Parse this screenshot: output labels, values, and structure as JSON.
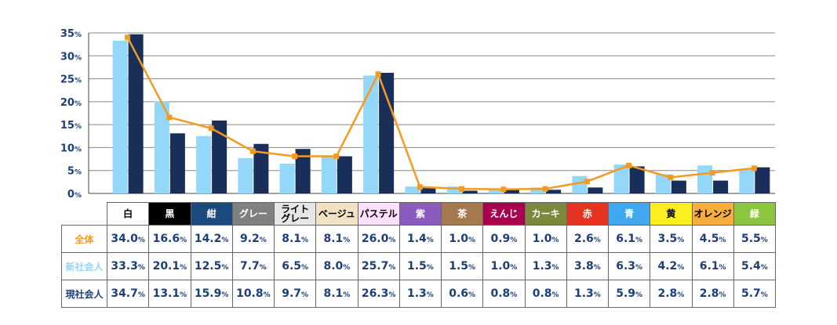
{
  "chart_data": {
    "type": "bar",
    "title": "",
    "xlabel": "",
    "ylabel": "",
    "ylim": [
      0,
      35
    ],
    "yticks": [
      "0%",
      "5%",
      "10%",
      "15%",
      "20%",
      "25%",
      "30%",
      "35%"
    ],
    "grid": true,
    "categories": [
      "白",
      "黒",
      "紺",
      "グレー",
      "ライト\nグレー",
      "ベージュ",
      "パステル",
      "紫",
      "茶",
      "えんじ",
      "カーキ",
      "赤",
      "青",
      "黄",
      "オレンジ",
      "緑"
    ],
    "category_colors": [
      "#ffffff",
      "#000000",
      "#1b4a80",
      "#808080",
      "#e6e6e6",
      "#f1e2c4",
      "#fde0fb",
      "#8a5cc0",
      "#a57850",
      "#a8004f",
      "#7a8a3a",
      "#e63320",
      "#40a8f0",
      "#fcee21",
      "#f9ad3b",
      "#8cc63f"
    ],
    "category_text_colors": [
      "#000",
      "#fff",
      "#fff",
      "#fff",
      "#000",
      "#000",
      "#000",
      "#fff",
      "#fff",
      "#fff",
      "#fff",
      "#fff",
      "#fff",
      "#000",
      "#000",
      "#fff"
    ],
    "series": [
      {
        "name": "全体",
        "type": "line",
        "color": "#f39a21",
        "values": [
          34.0,
          16.6,
          14.2,
          9.2,
          8.1,
          8.1,
          26.0,
          1.4,
          1.0,
          0.9,
          1.0,
          2.6,
          6.1,
          3.5,
          4.5,
          5.5
        ]
      },
      {
        "name": "新社会人",
        "type": "bar",
        "color": "#93d8f8",
        "values": [
          33.3,
          20.1,
          12.5,
          7.7,
          6.5,
          8.0,
          25.7,
          1.5,
          1.5,
          1.0,
          1.3,
          3.8,
          6.3,
          4.2,
          6.1,
          5.4
        ]
      },
      {
        "name": "現社会人",
        "type": "bar",
        "color": "#1a2e5a",
        "values": [
          34.7,
          13.1,
          15.9,
          10.8,
          9.7,
          8.1,
          26.3,
          1.3,
          0.6,
          0.8,
          0.8,
          1.3,
          5.9,
          2.8,
          2.8,
          5.7
        ]
      }
    ],
    "row_label_colors": [
      "#f39a21",
      "#93d8f8",
      "#1c3f78"
    ],
    "unit": "%"
  }
}
